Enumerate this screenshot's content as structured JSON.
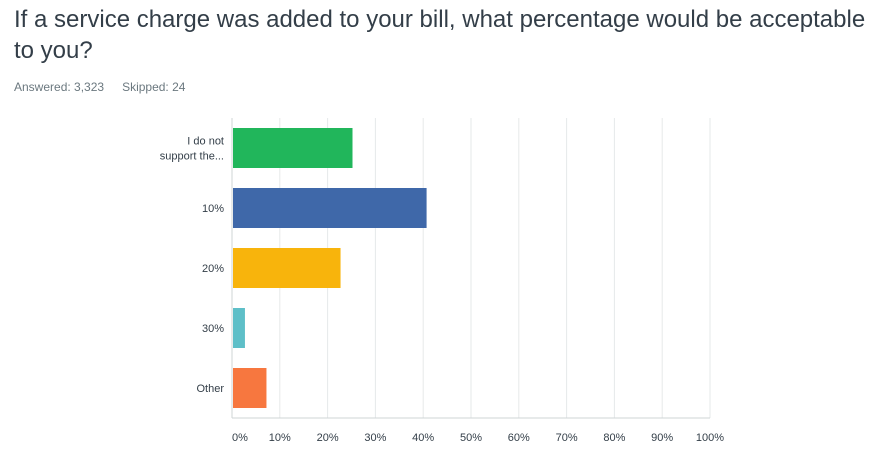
{
  "question": {
    "text": "If a service charge was added to your bill, what percentage would be acceptable to you?"
  },
  "stats": {
    "answered": "Answered: 3,323",
    "skipped": "Skipped: 24"
  },
  "chart_data": {
    "type": "bar",
    "orientation": "horizontal",
    "categories": [
      [
        "I do not",
        "support the..."
      ],
      [
        "10%"
      ],
      [
        "20%"
      ],
      [
        "30%"
      ],
      [
        "Other"
      ]
    ],
    "values": [
      25,
      40.5,
      22.5,
      2.5,
      7
    ],
    "colors": [
      "#21b65b",
      "#3f68a9",
      "#f8b40c",
      "#5ebfc8",
      "#f7773f"
    ],
    "x_ticks": [
      "0%",
      "10%",
      "20%",
      "30%",
      "40%",
      "50%",
      "60%",
      "70%",
      "80%",
      "90%",
      "100%"
    ],
    "xlim": [
      0,
      100
    ],
    "grid": true,
    "grid_color": "#e6e9ea",
    "axis_color": "#cfd4d6"
  }
}
